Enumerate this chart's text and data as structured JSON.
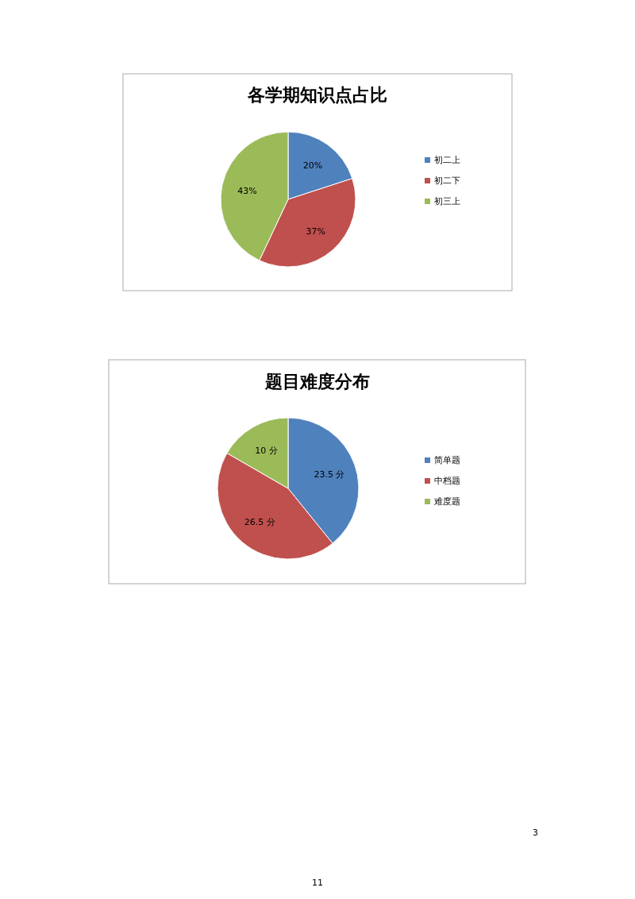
{
  "chart_data": [
    {
      "type": "pie",
      "title": "各学期知识点占比",
      "categories": [
        "初二上",
        "初二下",
        "初三上"
      ],
      "values": [
        20,
        37,
        43
      ],
      "value_labels": [
        "20%",
        "37%",
        "43%"
      ],
      "colors": [
        "#4f81bd",
        "#c0504d",
        "#9bbb59"
      ],
      "legend": "right"
    },
    {
      "type": "pie",
      "title": "题目难度分布",
      "categories": [
        "简单题",
        "中档题",
        "难度题"
      ],
      "values": [
        23.5,
        26.5,
        10
      ],
      "value_labels": [
        "23.5 分",
        "26.5 分",
        "10 分"
      ],
      "colors": [
        "#4f81bd",
        "#c0504d",
        "#9bbb59"
      ],
      "legend": "right",
      "annotations": [
        "3",
        "11"
      ]
    }
  ]
}
